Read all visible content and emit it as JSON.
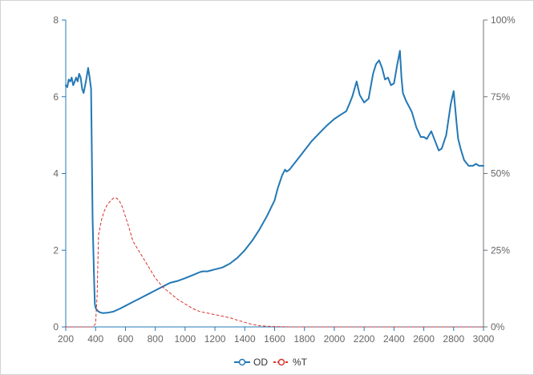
{
  "chart_data": {
    "type": "line",
    "x_axis": {
      "min": 200,
      "max": 3000,
      "ticks": [
        "200",
        "400",
        "600",
        "800",
        "1000",
        "1200",
        "1400",
        "1600",
        "1800",
        "2000",
        "2200",
        "2400",
        "2600",
        "2800",
        "3000"
      ]
    },
    "y_axis_left": {
      "min": 0,
      "max": 8,
      "ticks": [
        "0",
        "2",
        "4",
        "6",
        "8"
      ]
    },
    "y_axis_right": {
      "min": 0,
      "max": 100,
      "unit": "%",
      "ticks": [
        "0%",
        "25%",
        "50%",
        "75%",
        "100%"
      ]
    },
    "grid": false,
    "legend_position": "bottom-center",
    "series": [
      {
        "name": "OD",
        "axis": "left",
        "color": "#2378b5",
        "line_style": "solid",
        "x": [
          200,
          210,
          220,
          230,
          240,
          250,
          260,
          270,
          280,
          290,
          300,
          310,
          320,
          330,
          340,
          350,
          360,
          370,
          380,
          390,
          395,
          400,
          405,
          410,
          415,
          420,
          430,
          450,
          480,
          520,
          560,
          600,
          650,
          700,
          750,
          800,
          850,
          900,
          950,
          1000,
          1050,
          1100,
          1120,
          1150,
          1180,
          1200,
          1250,
          1300,
          1350,
          1400,
          1450,
          1500,
          1550,
          1600,
          1620,
          1650,
          1670,
          1680,
          1700,
          1720,
          1750,
          1800,
          1850,
          1900,
          1950,
          2000,
          2050,
          2080,
          2100,
          2120,
          2150,
          2170,
          2200,
          2230,
          2260,
          2280,
          2300,
          2320,
          2340,
          2360,
          2380,
          2400,
          2420,
          2440,
          2450,
          2460,
          2480,
          2500,
          2520,
          2550,
          2580,
          2600,
          2620,
          2650,
          2680,
          2700,
          2720,
          2750,
          2780,
          2800,
          2820,
          2830,
          2850,
          2870,
          2900,
          2930,
          2950,
          2970,
          3000
        ],
        "y": [
          6.3,
          6.25,
          6.45,
          6.4,
          6.5,
          6.3,
          6.4,
          6.5,
          6.4,
          6.6,
          6.5,
          6.2,
          6.1,
          6.3,
          6.5,
          6.75,
          6.5,
          6.2,
          2.8,
          1.2,
          0.6,
          0.5,
          0.46,
          0.44,
          0.42,
          0.4,
          0.38,
          0.36,
          0.37,
          0.4,
          0.47,
          0.55,
          0.65,
          0.75,
          0.85,
          0.95,
          1.05,
          1.15,
          1.2,
          1.27,
          1.35,
          1.43,
          1.45,
          1.45,
          1.48,
          1.5,
          1.55,
          1.65,
          1.8,
          2.0,
          2.25,
          2.55,
          2.9,
          3.3,
          3.6,
          3.95,
          4.1,
          4.05,
          4.1,
          4.2,
          4.35,
          4.6,
          4.85,
          5.05,
          5.25,
          5.42,
          5.55,
          5.62,
          5.8,
          6.0,
          6.4,
          6.05,
          5.85,
          5.95,
          6.6,
          6.85,
          6.95,
          6.75,
          6.45,
          6.5,
          6.3,
          6.35,
          6.8,
          7.2,
          6.5,
          6.1,
          5.9,
          5.75,
          5.6,
          5.2,
          4.95,
          4.95,
          4.9,
          5.1,
          4.8,
          4.6,
          4.65,
          5.0,
          5.8,
          6.15,
          5.3,
          4.9,
          4.6,
          4.35,
          4.2,
          4.2,
          4.25,
          4.2,
          4.2
        ]
      },
      {
        "name": "%T",
        "axis": "right",
        "color": "#d9322c",
        "line_style": "dashed",
        "x": [
          200,
          300,
          380,
          400,
          410,
          420,
          440,
          460,
          480,
          500,
          520,
          540,
          560,
          580,
          600,
          620,
          650,
          700,
          750,
          800,
          850,
          900,
          950,
          1000,
          1050,
          1100,
          1150,
          1200,
          1250,
          1300,
          1350,
          1400,
          1450,
          1500,
          1550,
          1600,
          1700,
          1800,
          2000,
          2200,
          2400,
          2600,
          2800,
          3000
        ],
        "y": [
          0,
          0,
          0,
          1,
          10,
          30,
          35,
          38,
          40,
          41,
          42,
          42,
          41,
          39,
          36,
          33,
          28,
          24,
          20,
          16,
          13,
          11,
          9,
          7.5,
          6,
          5,
          4.5,
          4,
          3.5,
          3,
          2.2,
          1.5,
          0.8,
          0.4,
          0.2,
          0.1,
          0,
          0,
          0,
          0,
          0,
          0,
          0,
          0
        ]
      }
    ]
  }
}
